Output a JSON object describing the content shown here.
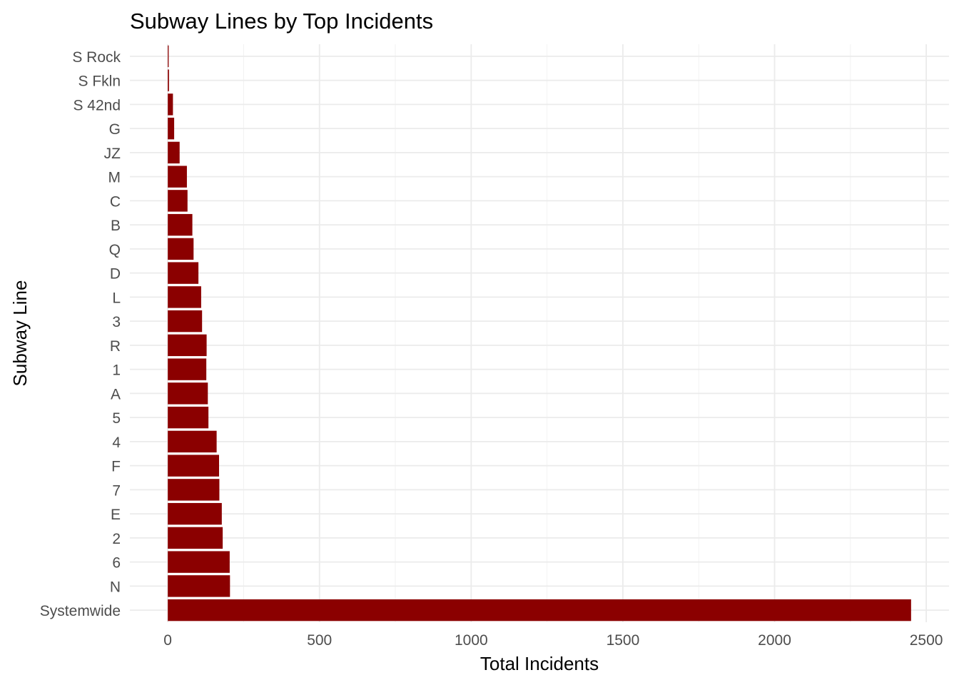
{
  "chart_data": {
    "type": "bar",
    "orientation": "horizontal",
    "title": "Subway Lines by Top Incidents",
    "xlabel": "Total Incidents",
    "ylabel": "Subway Line",
    "categories": [
      "Systemwide",
      "N",
      "6",
      "2",
      "E",
      "7",
      "F",
      "4",
      "5",
      "A",
      "1",
      "R",
      "3",
      "L",
      "D",
      "Q",
      "B",
      "C",
      "M",
      "JZ",
      "G",
      "S 42nd",
      "S Fkln",
      "S Rock"
    ],
    "values": [
      2450,
      205,
      204,
      181,
      178,
      170,
      169,
      161,
      134,
      132,
      127,
      128,
      113,
      110,
      101,
      85,
      81,
      65,
      63,
      39,
      21,
      17,
      4,
      3
    ],
    "xlim": [
      -125,
      2575
    ],
    "xticks": [
      0,
      500,
      1000,
      1500,
      2000,
      2500
    ],
    "xtick_labels": [
      "0",
      "500",
      "1000",
      "1500",
      "2000",
      "2500"
    ],
    "grid": true,
    "legend": "none",
    "bar_color": "#8b0000"
  }
}
